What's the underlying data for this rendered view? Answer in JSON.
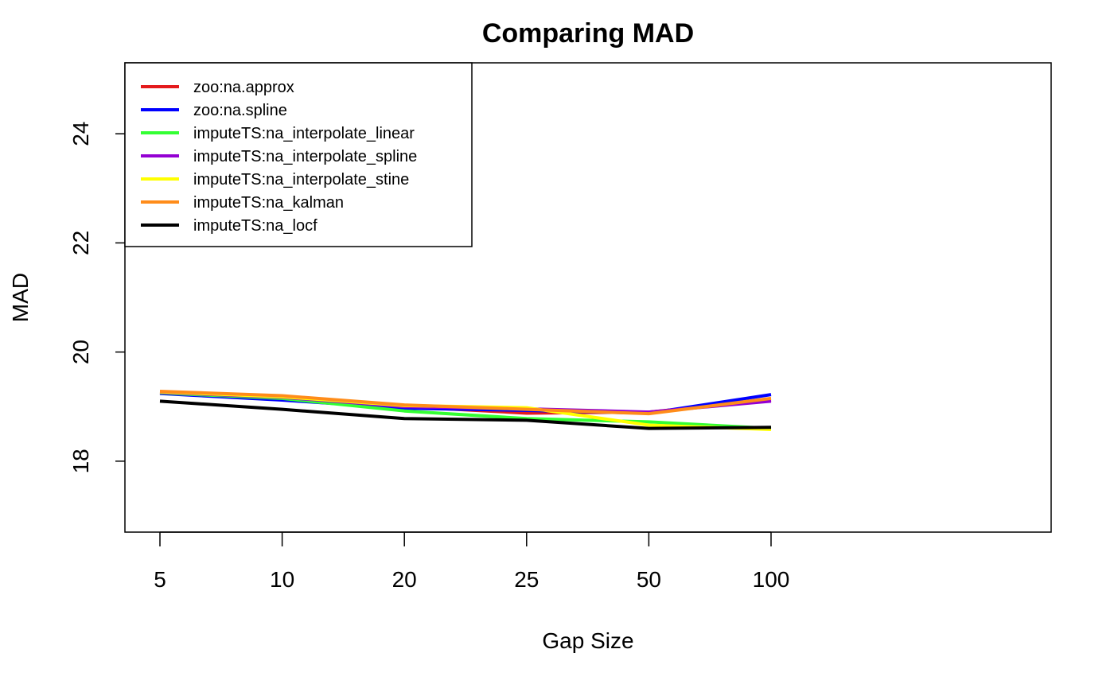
{
  "chart_data": {
    "type": "line",
    "title": "Comparing MAD",
    "xlabel": "Gap Size",
    "ylabel": "MAD",
    "categories": [
      "5",
      "10",
      "20",
      "25",
      "50",
      "100"
    ],
    "ylim": [
      16.7,
      25.3
    ],
    "yticks": [
      "18",
      "20",
      "22",
      "24"
    ],
    "grid": false,
    "legend_position": "top-left",
    "series": [
      {
        "name": "zoo:na.approx",
        "color": "#e41a1c",
        "values": [
          19.25,
          19.15,
          19.0,
          18.88,
          18.9,
          19.12
        ]
      },
      {
        "name": "zoo:na.spline",
        "color": "#0000ff",
        "values": [
          19.24,
          19.12,
          18.97,
          18.93,
          18.88,
          19.22
        ]
      },
      {
        "name": "imputeTS:na_interpolate_linear",
        "color": "#33ff33",
        "values": [
          19.25,
          19.15,
          18.92,
          18.78,
          18.72,
          18.6
        ]
      },
      {
        "name": "imputeTS:na_interpolate_spline",
        "color": "#9400d3",
        "values": [
          19.26,
          19.17,
          19.0,
          18.96,
          18.9,
          19.1
        ]
      },
      {
        "name": "imputeTS:na_interpolate_stine",
        "color": "#ffff00",
        "values": [
          19.27,
          19.18,
          19.02,
          18.98,
          18.66,
          18.58
        ]
      },
      {
        "name": "imputeTS:na_kalman",
        "color": "#ff8c1a",
        "values": [
          19.28,
          19.2,
          19.03,
          18.95,
          18.87,
          19.15
        ]
      },
      {
        "name": "imputeTS:na_locf",
        "color": "#000000",
        "values": [
          19.1,
          18.95,
          18.78,
          18.75,
          18.6,
          18.62
        ]
      }
    ]
  }
}
